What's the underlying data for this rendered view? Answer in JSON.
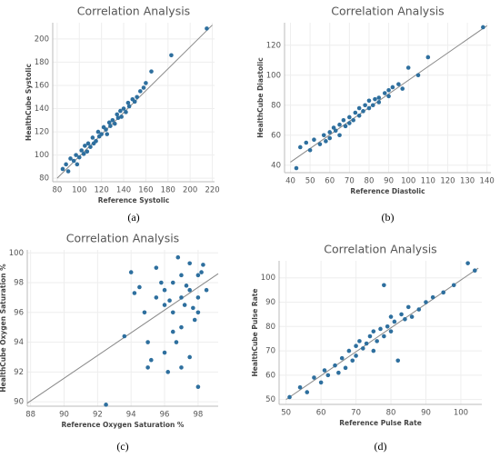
{
  "chart_data": [
    {
      "type": "scatter",
      "title": "Correlation Analysis",
      "x_label": "Reference Systolic",
      "y_label": "HealthCube Systolic",
      "caption": "(a)",
      "color": "#2e6f9e",
      "grid": true,
      "xlim": [
        76,
        222
      ],
      "ylim": [
        77,
        214
      ],
      "xticks": [
        80,
        100,
        120,
        140,
        160,
        180,
        200,
        220
      ],
      "yticks": [
        80,
        100,
        120,
        140,
        160,
        180,
        200
      ],
      "x": [
        85,
        88,
        90,
        92,
        95,
        97,
        98,
        100,
        102,
        104,
        105,
        107,
        108,
        110,
        112,
        113,
        115,
        117,
        118,
        120,
        122,
        124,
        125,
        127,
        128,
        130,
        132,
        134,
        135,
        137,
        138,
        140,
        142,
        144,
        145,
        148,
        150,
        152,
        155,
        158,
        160,
        165,
        183,
        215
      ],
      "y": [
        88,
        92,
        86,
        97,
        95,
        100,
        92,
        98,
        104,
        101,
        108,
        103,
        110,
        107,
        115,
        110,
        112,
        120,
        116,
        118,
        124,
        122,
        118,
        128,
        125,
        130,
        127,
        135,
        132,
        138,
        133,
        140,
        137,
        145,
        142,
        148,
        146,
        150,
        155,
        158,
        162,
        172,
        186,
        209
      ],
      "trend_line": {
        "x": [
          80,
          220
        ],
        "y": [
          80,
          212
        ]
      }
    },
    {
      "type": "scatter",
      "title": "Correlation Analysis",
      "x_label": "Reference Diastolic",
      "y_label": "HealthCube Diastolic",
      "caption": "(b)",
      "color": "#2e6f9e",
      "grid": true,
      "xlim": [
        37,
        142
      ],
      "ylim": [
        35,
        135
      ],
      "xticks": [
        40,
        50,
        60,
        70,
        80,
        90,
        100,
        110,
        120,
        130,
        140
      ],
      "yticks": [
        40,
        60,
        80,
        100,
        120
      ],
      "x": [
        43,
        45,
        48,
        50,
        52,
        55,
        57,
        58,
        60,
        60,
        62,
        63,
        65,
        65,
        67,
        68,
        70,
        70,
        72,
        73,
        75,
        75,
        77,
        78,
        80,
        80,
        82,
        83,
        85,
        85,
        88,
        90,
        90,
        92,
        95,
        97,
        100,
        105,
        110,
        138
      ],
      "y": [
        38,
        52,
        55,
        50,
        57,
        54,
        60,
        56,
        62,
        58,
        65,
        63,
        60,
        67,
        70,
        66,
        72,
        68,
        70,
        75,
        73,
        78,
        76,
        80,
        78,
        83,
        80,
        84,
        85,
        82,
        88,
        90,
        86,
        92,
        94,
        91,
        105,
        100,
        112,
        132
      ],
      "trend_line": {
        "x": [
          40,
          140
        ],
        "y": [
          42,
          133
        ]
      }
    },
    {
      "type": "scatter",
      "title": "Correlation Analysis",
      "x_label": "Reference Oxygen Saturation %",
      "y_label": "HealthCube Oxygen Saturation %",
      "caption": "(c)",
      "color": "#2e6f9e",
      "grid": true,
      "xlim": [
        87.8,
        99.2
      ],
      "ylim": [
        89.7,
        100.2
      ],
      "xticks": [
        88,
        90,
        92,
        94,
        96,
        98
      ],
      "yticks": [
        90,
        92,
        94,
        96,
        98,
        100
      ],
      "x": [
        92.5,
        93.6,
        94,
        94.2,
        94.5,
        95,
        95,
        95.2,
        95.5,
        95.5,
        96,
        96,
        96,
        96.2,
        96.5,
        96.5,
        96.5,
        96.8,
        97,
        97,
        97,
        97,
        97.2,
        97.5,
        97.5,
        97.5,
        97.8,
        98,
        98,
        98,
        98,
        98.2,
        98.5,
        95.8,
        96.3,
        96.7,
        97.3,
        97.7,
        98.3,
        94.8
      ],
      "y": [
        89.8,
        94.4,
        98.7,
        97.3,
        97.7,
        92.3,
        94,
        92.8,
        97,
        99,
        93.3,
        96.5,
        97.5,
        92,
        98,
        96,
        94.7,
        99.7,
        95,
        97,
        98.5,
        92.3,
        96.5,
        93,
        97.5,
        99.3,
        95.5,
        91,
        97,
        98.5,
        96,
        98.7,
        97.5,
        98,
        96.8,
        94,
        97.8,
        96.3,
        99.2,
        96
      ],
      "trend_line": {
        "x": [
          87.8,
          99.2
        ],
        "y": [
          89.9,
          98.6
        ]
      }
    },
    {
      "type": "scatter",
      "title": "Correlation Analysis",
      "x_label": "Reference Pulse Rate",
      "y_label": "HealthCube Pulse Rate",
      "caption": "(d)",
      "color": "#2e6f9e",
      "grid": true,
      "xlim": [
        48,
        106
      ],
      "ylim": [
        48,
        107
      ],
      "xticks": [
        50,
        60,
        70,
        80,
        90,
        100
      ],
      "yticks": [
        50,
        60,
        70,
        80,
        90,
        100
      ],
      "x": [
        51,
        54,
        56,
        58,
        60,
        61,
        62,
        64,
        65,
        66,
        67,
        68,
        69,
        70,
        70,
        71,
        72,
        73,
        74,
        75,
        75,
        76,
        77,
        78,
        78,
        79,
        80,
        80,
        81,
        82,
        83,
        84,
        85,
        86,
        88,
        90,
        92,
        95,
        98,
        102,
        104
      ],
      "y": [
        51,
        55,
        53,
        59,
        57,
        62,
        60,
        64,
        61,
        67,
        63,
        70,
        66,
        72,
        68,
        74,
        71,
        73,
        76,
        70,
        78,
        74,
        79,
        97,
        76,
        80,
        84,
        78,
        82,
        66,
        85,
        83,
        88,
        84,
        87,
        90,
        92,
        94,
        97,
        106,
        103
      ],
      "trend_line": {
        "x": [
          50,
          105
        ],
        "y": [
          50,
          104
        ]
      }
    }
  ]
}
